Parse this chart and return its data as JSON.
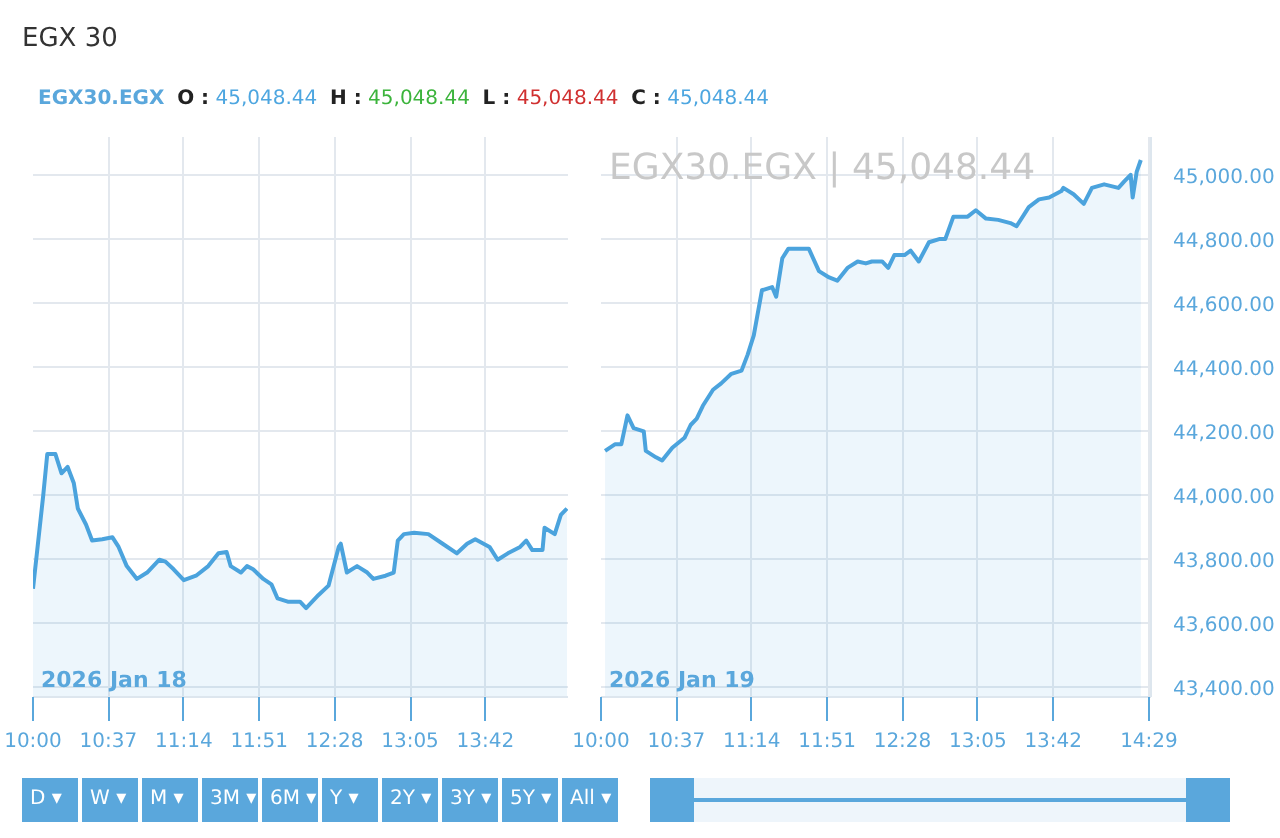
{
  "chart_data": [
    {
      "type": "area",
      "title": "EGX 30",
      "annotations": [
        "EGX30.EGX",
        "O : 45,048.44",
        "H : 45,048.44",
        "L : 45,048.44",
        "C : 45,048.44",
        "2026 Jan 18"
      ],
      "series": [
        {
          "color": "#4ba3dd",
          "x": [
            "2026-01-18T10:00",
            "2026-01-18T10:05",
            "2026-01-18T10:07",
            "2026-01-18T10:11",
            "2026-01-18T10:14",
            "2026-01-18T10:17",
            "2026-01-18T10:20",
            "2026-01-18T10:22",
            "2026-01-18T10:26",
            "2026-01-18T10:29",
            "2026-01-18T10:34",
            "2026-01-18T10:39",
            "2026-01-18T10:42",
            "2026-01-18T10:46",
            "2026-01-18T10:51",
            "2026-01-18T10:56",
            "2026-01-18T11:02",
            "2026-01-18T11:05",
            "2026-01-18T11:09",
            "2026-01-18T11:14",
            "2026-01-18T11:20",
            "2026-01-18T11:26",
            "2026-01-18T11:31",
            "2026-01-18T11:35",
            "2026-01-18T11:37",
            "2026-01-18T11:42",
            "2026-01-18T11:45",
            "2026-01-18T11:48",
            "2026-01-18T11:53",
            "2026-01-18T11:57",
            "2026-01-18T12:00",
            "2026-01-18T12:05",
            "2026-01-18T12:11",
            "2026-01-18T12:14",
            "2026-01-18T12:20",
            "2026-01-18T12:25",
            "2026-01-18T12:30",
            "2026-01-18T12:31",
            "2026-01-18T12:34",
            "2026-01-18T12:39",
            "2026-01-18T12:44",
            "2026-01-18T12:47",
            "2026-01-18T12:53",
            "2026-01-18T12:57",
            "2026-01-18T12:59",
            "2026-01-18T13:02",
            "2026-01-18T13:07",
            "2026-01-18T13:14",
            "2026-01-18T13:21",
            "2026-01-18T13:28",
            "2026-01-18T13:33",
            "2026-01-18T13:37",
            "2026-01-18T13:44",
            "2026-01-18T13:48",
            "2026-01-18T13:53",
            "2026-01-18T13:59",
            "2026-01-18T14:02",
            "2026-01-18T14:05",
            "2026-01-18T14:10",
            "2026-01-18T14:11",
            "2026-01-18T14:16",
            "2026-01-18T14:19",
            "2026-01-18T14:22"
          ],
          "values": [
            43708,
            43999,
            44129,
            44129,
            44069,
            44089,
            44039,
            43959,
            43909,
            43859,
            43863,
            43869,
            43839,
            43779,
            43739,
            43759,
            43799,
            43793,
            43769,
            43735,
            43749,
            43779,
            43819,
            43823,
            43779,
            43759,
            43779,
            43769,
            43739,
            43722,
            43678,
            43668,
            43668,
            43648,
            43688,
            43718,
            43839,
            43849,
            43759,
            43779,
            43759,
            43739,
            43749,
            43759,
            43859,
            43879,
            43883,
            43879,
            43849,
            43819,
            43849,
            43863,
            43839,
            43799,
            43819,
            43839,
            43859,
            43829,
            43829,
            43899,
            43879,
            43939,
            43959
          ]
        }
      ],
      "xlim": [
        "2026-01-18T10:00",
        "2026-01-18T14:23"
      ],
      "xticks": [
        {
          "value": "2026-01-18T10:00",
          "label": "10:00"
        },
        {
          "value": "2026-01-18T10:37",
          "label": "10:37"
        },
        {
          "value": "2026-01-18T11:14",
          "label": "11:14"
        },
        {
          "value": "2026-01-18T11:51",
          "label": "11:51"
        },
        {
          "value": "2026-01-18T12:28",
          "label": "12:28"
        },
        {
          "value": "2026-01-18T13:05",
          "label": "13:05"
        },
        {
          "value": "2026-01-18T13:42",
          "label": "13:42"
        }
      ],
      "ylim": [
        43370,
        45120
      ],
      "yticks": [
        43400,
        43600,
        43800,
        44000,
        44200,
        44400,
        44600,
        44800,
        45000
      ],
      "tick_labels": "x",
      "grid": true
    },
    {
      "type": "area",
      "annotations": [
        "2026 Jan 19",
        "EGX30.EGX  |  45,048.44",
        "D ▾",
        "W ▾",
        "M ▾",
        "3M ▾",
        "6M ▾",
        "Y ▾",
        "2Y ▾",
        "3Y ▾",
        "5Y ▾",
        "All ▾"
      ],
      "series": [
        {
          "color": "#4ba3dd",
          "x": [
            "2026-01-19T10:02",
            "2026-01-19T10:07",
            "2026-01-19T10:10",
            "2026-01-19T10:13",
            "2026-01-19T10:16",
            "2026-01-19T10:21",
            "2026-01-19T10:22",
            "2026-01-19T10:27",
            "2026-01-19T10:30",
            "2026-01-19T10:35",
            "2026-01-19T10:41",
            "2026-01-19T10:44",
            "2026-01-19T10:47",
            "2026-01-19T10:50",
            "2026-01-19T10:55",
            "2026-01-19T10:59",
            "2026-01-19T11:04",
            "2026-01-19T11:09",
            "2026-01-19T11:12",
            "2026-01-19T11:15",
            "2026-01-19T11:19",
            "2026-01-19T11:24",
            "2026-01-19T11:26",
            "2026-01-19T11:29",
            "2026-01-19T11:32",
            "2026-01-19T11:38",
            "2026-01-19T11:42",
            "2026-01-19T11:47",
            "2026-01-19T11:52",
            "2026-01-19T11:56",
            "2026-01-19T12:01",
            "2026-01-19T12:06",
            "2026-01-19T12:10",
            "2026-01-19T12:13",
            "2026-01-19T12:18",
            "2026-01-19T12:21",
            "2026-01-19T12:24",
            "2026-01-19T12:29",
            "2026-01-19T12:32",
            "2026-01-19T12:36",
            "2026-01-19T12:41",
            "2026-01-19T12:46",
            "2026-01-19T12:49",
            "2026-01-19T12:53",
            "2026-01-19T13:00",
            "2026-01-19T13:04",
            "2026-01-19T13:09",
            "2026-01-19T13:15",
            "2026-01-19T13:21",
            "2026-01-19T13:24",
            "2026-01-19T13:30",
            "2026-01-19T13:35",
            "2026-01-19T13:40",
            "2026-01-19T13:46",
            "2026-01-19T13:47",
            "2026-01-19T13:52",
            "2026-01-19T13:57",
            "2026-01-19T14:01",
            "2026-01-19T14:07",
            "2026-01-19T14:14",
            "2026-01-19T14:17",
            "2026-01-19T14:20",
            "2026-01-19T14:21",
            "2026-01-19T14:23",
            "2026-01-19T14:25"
          ],
          "values": [
            44139,
            44160,
            44160,
            44250,
            44210,
            44200,
            44139,
            44119,
            44109,
            44149,
            44180,
            44220,
            44240,
            44280,
            44330,
            44350,
            44380,
            44390,
            44440,
            44500,
            44641,
            44651,
            44621,
            44741,
            44771,
            44771,
            44771,
            44701,
            44681,
            44671,
            44711,
            44731,
            44725,
            44731,
            44731,
            44711,
            44751,
            44751,
            44765,
            44731,
            44791,
            44801,
            44801,
            44871,
            44871,
            44891,
            44865,
            44861,
            44851,
            44841,
            44901,
            44925,
            44931,
            44951,
            44961,
            44941,
            44911,
            44961,
            44972,
            44961,
            44982,
            45002,
            44931,
            45012,
            45048
          ]
        }
      ],
      "xlim": [
        "2026-01-19T10:00",
        "2026-01-19T14:30"
      ],
      "xticks": [
        {
          "value": "2026-01-19T10:00",
          "label": "10:00"
        },
        {
          "value": "2026-01-19T10:37",
          "label": "10:37"
        },
        {
          "value": "2026-01-19T11:14",
          "label": "11:14"
        },
        {
          "value": "2026-01-19T11:51",
          "label": "11:51"
        },
        {
          "value": "2026-01-19T12:28",
          "label": "12:28"
        },
        {
          "value": "2026-01-19T13:05",
          "label": "13:05"
        },
        {
          "value": "2026-01-19T13:42",
          "label": "13:42"
        },
        {
          "value": "2026-01-19T14:29",
          "label": "14:29"
        }
      ],
      "ylim": [
        43370,
        45120
      ],
      "yticks": [
        {
          "value": 43400,
          "label": "43,400.00"
        },
        {
          "value": 43600,
          "label": "43,600.00"
        },
        {
          "value": 43800,
          "label": "43,800.00"
        },
        {
          "value": 44000,
          "label": "44,000.00"
        },
        {
          "value": 44200,
          "label": "44,200.00"
        },
        {
          "value": 44400,
          "label": "44,400.00"
        },
        {
          "value": 44600,
          "label": "44,600.00"
        },
        {
          "value": 44800,
          "label": "44,800.00"
        },
        {
          "value": 45000,
          "label": "45,000.00"
        }
      ],
      "grid": true
    }
  ]
}
